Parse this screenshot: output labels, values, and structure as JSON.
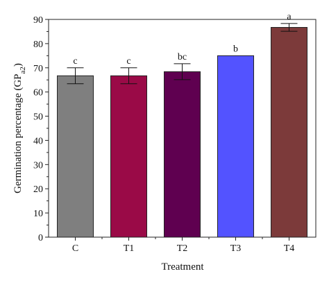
{
  "chart_data": {
    "type": "bar",
    "title": "",
    "xlabel": "Treatment",
    "ylabel": "Germination percentage (GP",
    "ylabel_sub": "a2",
    "ylabel_close": ")",
    "ylim": [
      0,
      90
    ],
    "yticks": [
      0,
      10,
      20,
      30,
      40,
      50,
      60,
      70,
      80,
      90
    ],
    "grid": false,
    "categories": [
      "C",
      "T1",
      "T2",
      "T3",
      "T4"
    ],
    "values": [
      66.7,
      66.7,
      68.4,
      75.0,
      86.7
    ],
    "errors": [
      3.3,
      3.3,
      3.3,
      0,
      1.6
    ],
    "significance": [
      "c",
      "c",
      "bc",
      "b",
      "a"
    ],
    "colors": [
      "#7f7f7f",
      "#9a0a47",
      "#5f0050",
      "#5353ff",
      "#7c3a3a"
    ]
  }
}
